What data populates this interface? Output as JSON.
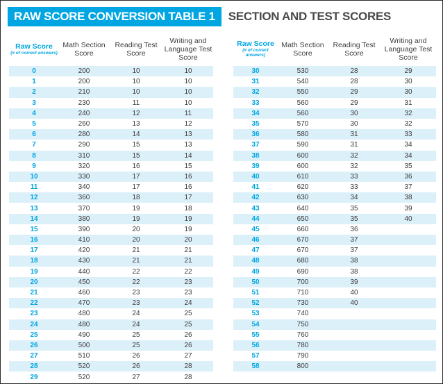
{
  "title": "RAW SCORE CONVERSION TABLE 1",
  "subtitle": "SECTION AND TEST SCORES",
  "headers": {
    "raw_score": "Raw Score",
    "raw_score_note": "(# of correct answers)",
    "math": "Math Section Score",
    "reading": "Reading Test Score",
    "writing": "Writing and Language Test Score"
  },
  "colors": {
    "accent": "#00a6e2",
    "row_shade": "#dcf0fa"
  },
  "rows": [
    [
      "0",
      "200",
      "10",
      "10"
    ],
    [
      "1",
      "200",
      "10",
      "10"
    ],
    [
      "2",
      "210",
      "10",
      "10"
    ],
    [
      "3",
      "230",
      "11",
      "10"
    ],
    [
      "4",
      "240",
      "12",
      "11"
    ],
    [
      "5",
      "260",
      "13",
      "12"
    ],
    [
      "6",
      "280",
      "14",
      "13"
    ],
    [
      "7",
      "290",
      "15",
      "13"
    ],
    [
      "8",
      "310",
      "15",
      "14"
    ],
    [
      "9",
      "320",
      "16",
      "15"
    ],
    [
      "10",
      "330",
      "17",
      "16"
    ],
    [
      "11",
      "340",
      "17",
      "16"
    ],
    [
      "12",
      "360",
      "18",
      "17"
    ],
    [
      "13",
      "370",
      "19",
      "18"
    ],
    [
      "14",
      "380",
      "19",
      "19"
    ],
    [
      "15",
      "390",
      "20",
      "19"
    ],
    [
      "16",
      "410",
      "20",
      "20"
    ],
    [
      "17",
      "420",
      "21",
      "21"
    ],
    [
      "18",
      "430",
      "21",
      "21"
    ],
    [
      "19",
      "440",
      "22",
      "22"
    ],
    [
      "20",
      "450",
      "22",
      "23"
    ],
    [
      "21",
      "460",
      "23",
      "23"
    ],
    [
      "22",
      "470",
      "23",
      "24"
    ],
    [
      "23",
      "480",
      "24",
      "25"
    ],
    [
      "24",
      "480",
      "24",
      "25"
    ],
    [
      "25",
      "490",
      "25",
      "26"
    ],
    [
      "26",
      "500",
      "25",
      "26"
    ],
    [
      "27",
      "510",
      "26",
      "27"
    ],
    [
      "28",
      "520",
      "26",
      "28"
    ],
    [
      "29",
      "520",
      "27",
      "28"
    ],
    [
      "30",
      "530",
      "28",
      "29"
    ],
    [
      "31",
      "540",
      "28",
      "30"
    ],
    [
      "32",
      "550",
      "29",
      "30"
    ],
    [
      "33",
      "560",
      "29",
      "31"
    ],
    [
      "34",
      "560",
      "30",
      "32"
    ],
    [
      "35",
      "570",
      "30",
      "32"
    ],
    [
      "36",
      "580",
      "31",
      "33"
    ],
    [
      "37",
      "590",
      "31",
      "34"
    ],
    [
      "38",
      "600",
      "32",
      "34"
    ],
    [
      "39",
      "600",
      "32",
      "35"
    ],
    [
      "40",
      "610",
      "33",
      "36"
    ],
    [
      "41",
      "620",
      "33",
      "37"
    ],
    [
      "42",
      "630",
      "34",
      "38"
    ],
    [
      "43",
      "640",
      "35",
      "39"
    ],
    [
      "44",
      "650",
      "35",
      "40"
    ],
    [
      "45",
      "660",
      "36",
      ""
    ],
    [
      "46",
      "670",
      "37",
      ""
    ],
    [
      "47",
      "670",
      "37",
      ""
    ],
    [
      "48",
      "680",
      "38",
      ""
    ],
    [
      "49",
      "690",
      "38",
      ""
    ],
    [
      "50",
      "700",
      "39",
      ""
    ],
    [
      "51",
      "710",
      "40",
      ""
    ],
    [
      "52",
      "730",
      "40",
      ""
    ],
    [
      "53",
      "740",
      "",
      ""
    ],
    [
      "54",
      "750",
      "",
      ""
    ],
    [
      "55",
      "760",
      "",
      ""
    ],
    [
      "56",
      "780",
      "",
      ""
    ],
    [
      "57",
      "790",
      "",
      ""
    ],
    [
      "58",
      "800",
      "",
      ""
    ]
  ]
}
